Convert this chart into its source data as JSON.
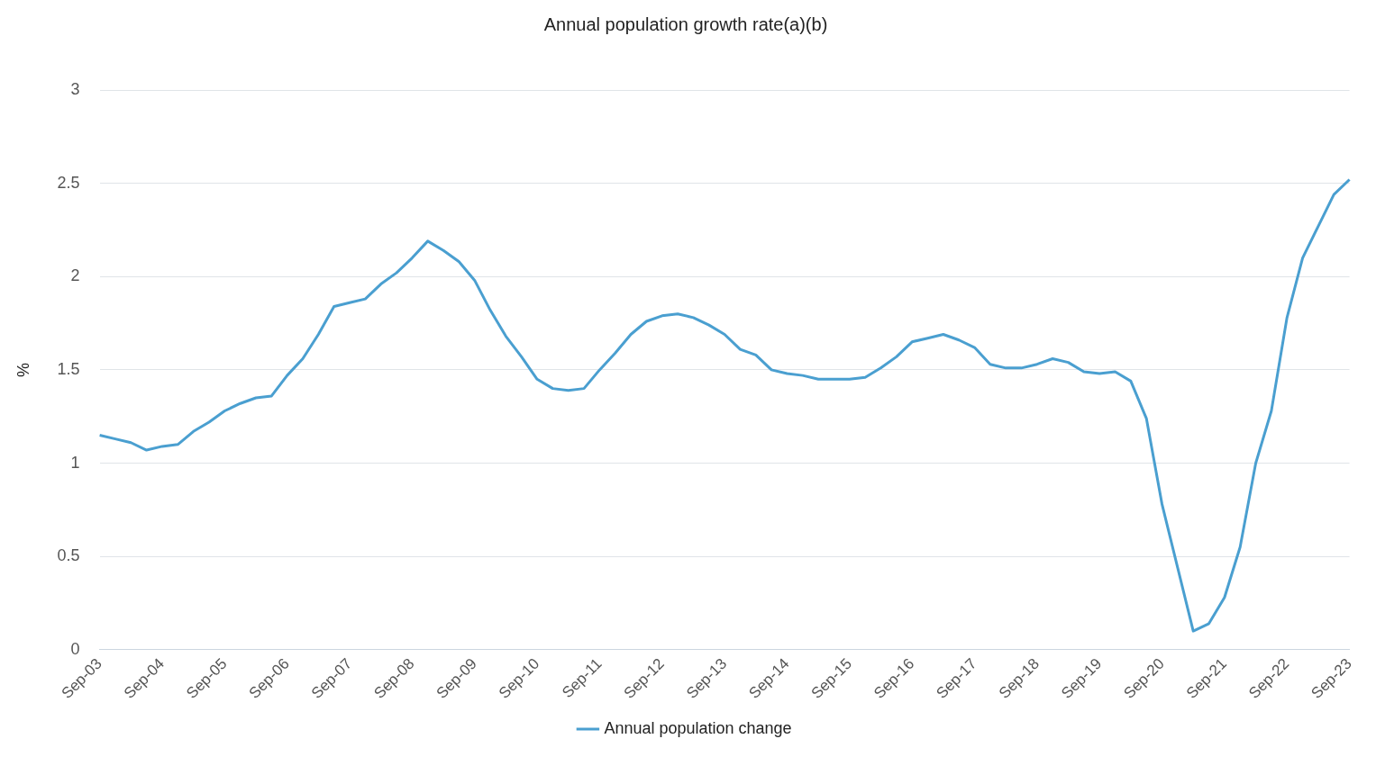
{
  "chart_data": {
    "type": "line",
    "title": "Annual population growth rate(a)(b)",
    "ylabel": "%",
    "categories": [
      "Sep-03",
      null,
      null,
      null,
      "Sep-04",
      null,
      null,
      null,
      "Sep-05",
      null,
      null,
      null,
      "Sep-06",
      null,
      null,
      null,
      "Sep-07",
      null,
      null,
      null,
      "Sep-08",
      null,
      null,
      null,
      "Sep-09",
      null,
      null,
      null,
      "Sep-10",
      null,
      null,
      null,
      "Sep-11",
      null,
      null,
      null,
      "Sep-12",
      null,
      null,
      null,
      "Sep-13",
      null,
      null,
      null,
      "Sep-14",
      null,
      null,
      null,
      "Sep-15",
      null,
      null,
      null,
      "Sep-16",
      null,
      null,
      null,
      "Sep-17",
      null,
      null,
      null,
      "Sep-18",
      null,
      null,
      null,
      "Sep-19",
      null,
      null,
      null,
      "Sep-20",
      null,
      null,
      null,
      "Sep-21",
      null,
      null,
      null,
      "Sep-22",
      null,
      null,
      null,
      "Sep-23"
    ],
    "series": [
      {
        "name": "Annual population change",
        "color": "#4a9fd0",
        "values": [
          1.15,
          1.13,
          1.11,
          1.07,
          1.09,
          1.1,
          1.17,
          1.22,
          1.28,
          1.32,
          1.35,
          1.36,
          1.47,
          1.56,
          1.69,
          1.84,
          1.86,
          1.88,
          1.96,
          2.02,
          2.1,
          2.19,
          2.14,
          2.08,
          1.98,
          1.82,
          1.68,
          1.57,
          1.45,
          1.4,
          1.39,
          1.4,
          1.5,
          1.59,
          1.69,
          1.76,
          1.79,
          1.8,
          1.78,
          1.74,
          1.69,
          1.61,
          1.58,
          1.5,
          1.48,
          1.47,
          1.45,
          1.45,
          1.45,
          1.46,
          1.51,
          1.57,
          1.65,
          1.67,
          1.69,
          1.66,
          1.62,
          1.53,
          1.51,
          1.51,
          1.53,
          1.56,
          1.54,
          1.49,
          1.48,
          1.49,
          1.44,
          1.24,
          0.78,
          0.44,
          0.1,
          0.14,
          0.28,
          0.55,
          1.0,
          1.28,
          1.78,
          2.1,
          2.27,
          2.44,
          2.52
        ]
      }
    ],
    "ylim": [
      0,
      3
    ],
    "yticks": [
      0,
      0.5,
      1,
      1.5,
      2,
      2.5,
      3
    ],
    "grid": "y",
    "legend": "bottom",
    "marker": "none",
    "line_style": "solid"
  }
}
